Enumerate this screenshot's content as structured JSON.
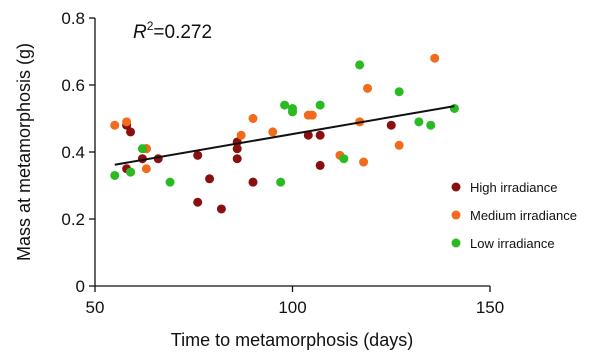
{
  "chart_data": {
    "type": "scatter",
    "xlabel": "Time to metamorphosis (days)",
    "ylabel": "Mass at metamorphosis (g)",
    "xlim": [
      50,
      150
    ],
    "ylim": [
      0,
      0.8
    ],
    "x_ticks": [
      50,
      100,
      150
    ],
    "y_ticks": [
      0,
      0.2,
      0.4,
      0.6,
      0.8
    ],
    "x_tick_labels": [
      "50",
      "100",
      "150"
    ],
    "y_tick_labels": [
      "0",
      "0.2",
      "0.4",
      "0.6",
      "0.8"
    ],
    "annotation": {
      "symbol": "R",
      "superscript": "2",
      "value_text": "=0.272"
    },
    "grid": false,
    "legend_position": "right",
    "trendline": {
      "x": [
        55,
        141
      ],
      "y": [
        0.362,
        0.537
      ]
    },
    "series": [
      {
        "name": "High irradiance",
        "color": "#8b0f0f",
        "points": [
          [
            58,
            0.48
          ],
          [
            59,
            0.46
          ],
          [
            58,
            0.35
          ],
          [
            62,
            0.38
          ],
          [
            63,
            0.41
          ],
          [
            66,
            0.38
          ],
          [
            76,
            0.39
          ],
          [
            76,
            0.25
          ],
          [
            79,
            0.32
          ],
          [
            82,
            0.23
          ],
          [
            86,
            0.38
          ],
          [
            86,
            0.41
          ],
          [
            86,
            0.43
          ],
          [
            90,
            0.31
          ],
          [
            104,
            0.45
          ],
          [
            107,
            0.45
          ],
          [
            107,
            0.36
          ],
          [
            125,
            0.48
          ]
        ]
      },
      {
        "name": "Medium irradiance",
        "color": "#f26a1b",
        "points": [
          [
            55,
            0.48
          ],
          [
            58,
            0.49
          ],
          [
            59,
            0.34
          ],
          [
            63,
            0.41
          ],
          [
            63,
            0.35
          ],
          [
            87,
            0.45
          ],
          [
            90,
            0.5
          ],
          [
            95,
            0.46
          ],
          [
            100,
            0.52
          ],
          [
            104,
            0.51
          ],
          [
            105,
            0.51
          ],
          [
            112,
            0.39
          ],
          [
            117,
            0.49
          ],
          [
            119,
            0.59
          ],
          [
            118,
            0.37
          ],
          [
            127,
            0.42
          ],
          [
            136,
            0.68
          ]
        ]
      },
      {
        "name": "Low irradiance",
        "color": "#2aba22",
        "points": [
          [
            55,
            0.33
          ],
          [
            59,
            0.34
          ],
          [
            62,
            0.41
          ],
          [
            69,
            0.31
          ],
          [
            97,
            0.31
          ],
          [
            98,
            0.54
          ],
          [
            100,
            0.53
          ],
          [
            100,
            0.52
          ],
          [
            107,
            0.54
          ],
          [
            113,
            0.38
          ],
          [
            117,
            0.66
          ],
          [
            127,
            0.58
          ],
          [
            132,
            0.49
          ],
          [
            135,
            0.48
          ],
          [
            141,
            0.53
          ]
        ]
      }
    ]
  }
}
